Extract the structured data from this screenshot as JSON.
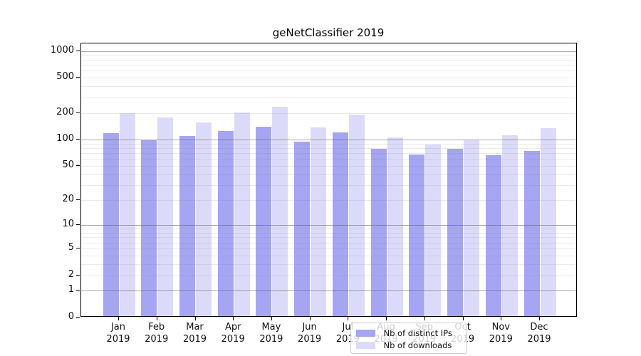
{
  "title": "geNetClassifier 2019",
  "chart_data": {
    "type": "bar",
    "title": "geNetClassifier 2019",
    "scale": "log10(value+1)",
    "categories": [
      "Jan",
      "Feb",
      "Mar",
      "Apr",
      "May",
      "Jun",
      "Jul",
      "Aug",
      "Sep",
      "Oct",
      "Nov",
      "Dec"
    ],
    "category_year": "2019",
    "series": [
      {
        "name": "Nb of distinct IPs",
        "color": "#a5a5f2",
        "values": [
          113,
          95,
          105,
          120,
          134,
          91,
          116,
          75,
          65,
          76,
          64,
          72
        ]
      },
      {
        "name": "Nb of downloads",
        "color": "#dbdbf9",
        "values": [
          193,
          172,
          150,
          196,
          224,
          132,
          183,
          102,
          85,
          95,
          108,
          130
        ]
      }
    ],
    "y_ticks": [
      1000,
      500,
      200,
      100,
      50,
      20,
      10,
      5,
      2,
      1,
      0
    ],
    "y_major_gridlines": [
      1,
      10,
      100,
      1000
    ],
    "y_minor_gridline_subs": [
      2,
      3,
      4,
      5,
      6,
      7,
      8,
      9
    ],
    "ylim": [
      0,
      1200
    ],
    "xlabel": "",
    "ylabel": "",
    "grid": "on (drawn over bars)",
    "legend_position": "lower-center-inside",
    "colors": {
      "axis": "#000000",
      "major_grid": "#8c8c8c",
      "minor_grid": "#e4e4e4",
      "legend_border": "#cccccc",
      "legend_background": "rgba(255,255,255,0.8)",
      "background": "#ffffff"
    }
  }
}
